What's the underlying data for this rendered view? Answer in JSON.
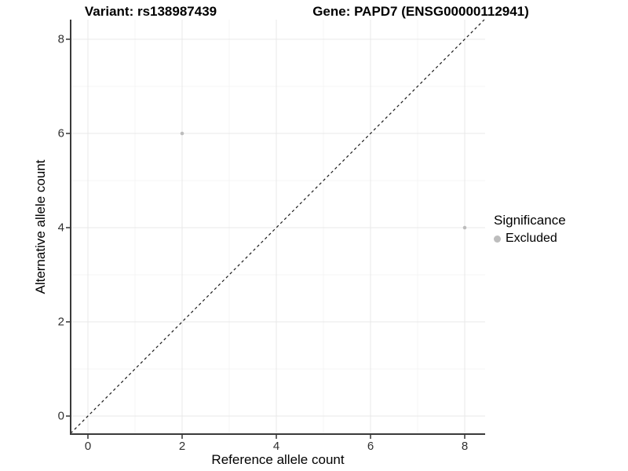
{
  "header": {
    "title_left": "Variant: rs138987439",
    "title_right": "Gene: PAPD7 (ENSG00000112941)"
  },
  "legend": {
    "title": "Significance",
    "items": [
      {
        "label": "Excluded",
        "color": "#bdbdbd",
        "marker": "circle"
      }
    ]
  },
  "chart_data": {
    "type": "scatter",
    "title_left": "Variant: rs138987439",
    "title_right": "Gene: PAPD7 (ENSG00000112941)",
    "xlabel": "Reference allele count",
    "ylabel": "Alternative allele count",
    "xlim": [
      -0.3667,
      8.4333
    ],
    "ylim": [
      -0.3833,
      8.4167
    ],
    "x_ticks": [
      0,
      2,
      4,
      6,
      8
    ],
    "y_ticks": [
      0,
      2,
      4,
      6,
      8
    ],
    "x_minor_ticks": [
      1,
      3,
      5,
      7
    ],
    "y_minor_ticks": [
      1,
      3,
      5,
      7
    ],
    "grid": "major+minor",
    "legend_position": "right",
    "series": [
      {
        "name": "Excluded",
        "color": "#bdbdbd",
        "points": [
          {
            "x": 2,
            "y": 6
          },
          {
            "x": 8,
            "y": 4
          }
        ]
      }
    ],
    "reference_line": {
      "style": "dashed",
      "slope": 1,
      "intercept": 0,
      "color": "#1a1a1a"
    }
  },
  "colors": {
    "background": "#ffffff",
    "grid_major": "#e8e8e8",
    "grid_minor": "#f4f4f4",
    "axis_line": "#3a3a3a",
    "tick_mark": "#333333",
    "tick_label": "#303030",
    "point": "#bdbdbd"
  }
}
